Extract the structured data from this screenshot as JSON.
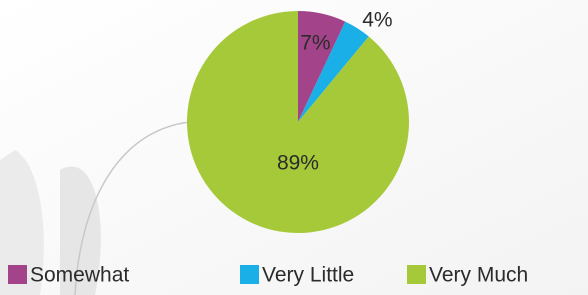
{
  "chart_data": {
    "type": "pie",
    "categories": [
      "Somewhat",
      "Very Little",
      "Very Much"
    ],
    "values": [
      7,
      4,
      89
    ],
    "value_labels": [
      "7%",
      "4%",
      "89%"
    ],
    "colors": [
      "#a3448b",
      "#1aafe6",
      "#a6c939"
    ]
  }
}
